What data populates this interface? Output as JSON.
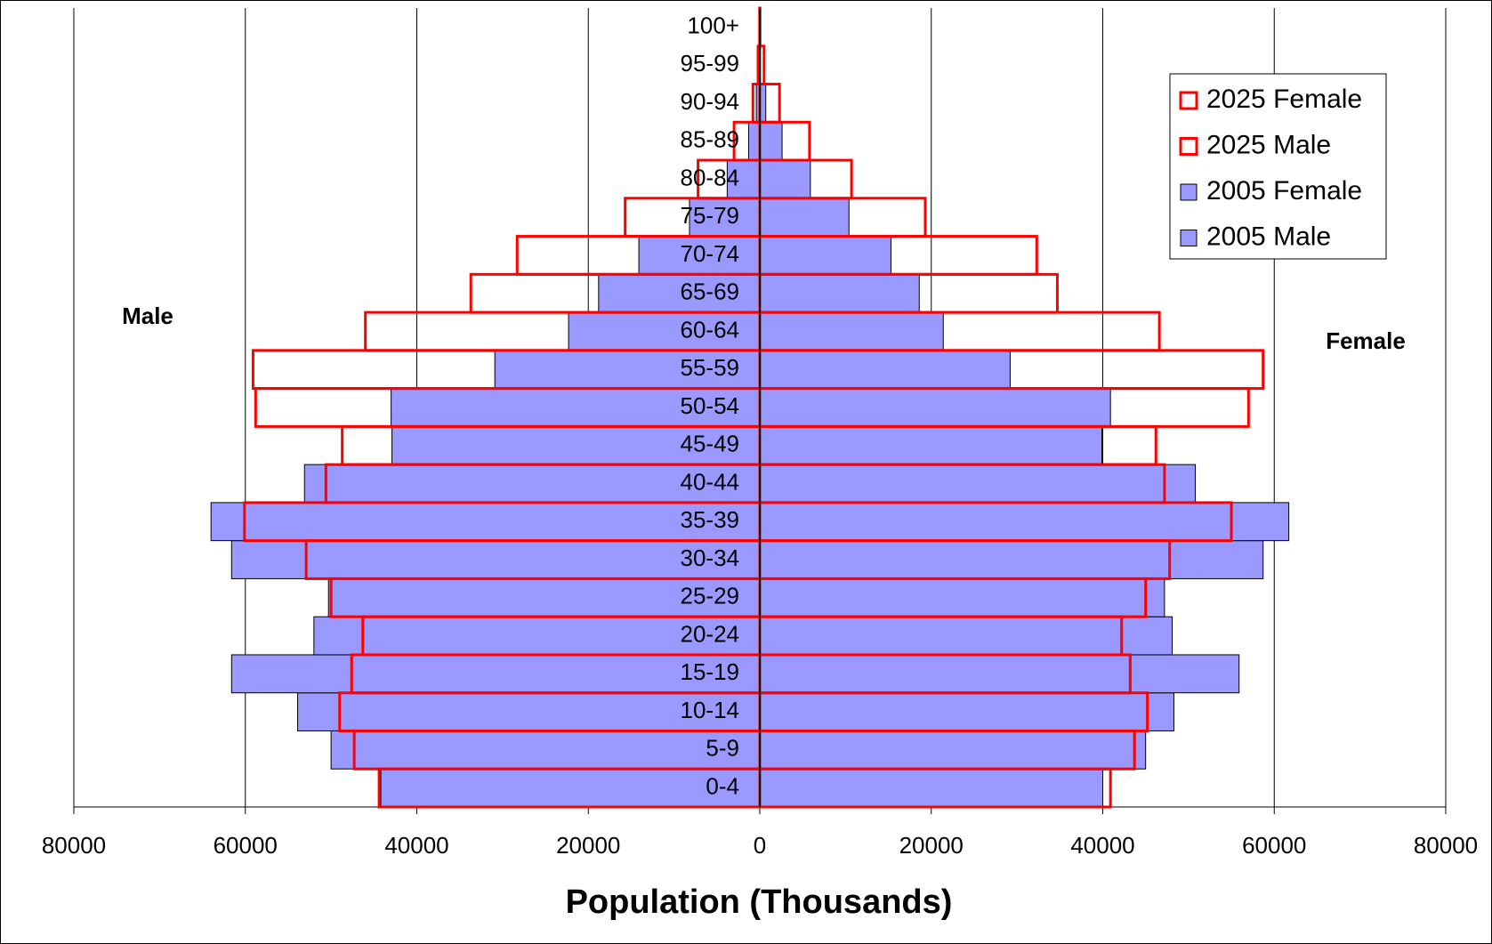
{
  "chart_data": {
    "type": "bar",
    "orientation": "horizontal",
    "x_label": "Population (Thousands)",
    "annotations": [
      "Male",
      "Female"
    ],
    "categories": [
      "0-4",
      "5-9",
      "10-14",
      "15-19",
      "20-24",
      "25-29",
      "30-34",
      "35-39",
      "40-44",
      "45-49",
      "50-54",
      "55-59",
      "60-64",
      "65-69",
      "70-74",
      "75-79",
      "80-84",
      "85-89",
      "90-94",
      "95-99",
      "100+"
    ],
    "series": [
      {
        "name": "2025 Female",
        "color": "#ff0000",
        "style": "outline",
        "values": [
          40900,
          43700,
          45200,
          43200,
          42200,
          45000,
          47800,
          55000,
          47200,
          46200,
          57000,
          58700,
          46600,
          34700,
          32300,
          19300,
          10700,
          5800,
          2300,
          500,
          30
        ]
      },
      {
        "name": "2025 Male",
        "color": "#ff0000",
        "style": "outline",
        "values": [
          -44400,
          -47300,
          -49000,
          -47600,
          -46300,
          -50000,
          -52900,
          -60100,
          -50600,
          -48700,
          -58800,
          -59100,
          -46000,
          -33700,
          -28300,
          -15700,
          -7200,
          -3000,
          -800,
          -200,
          -20
        ]
      },
      {
        "name": "2005 Female",
        "color": "#9999ff",
        "style": "filled",
        "values": [
          40000,
          45000,
          48300,
          55900,
          48100,
          47200,
          58700,
          61700,
          50800,
          39900,
          40900,
          29200,
          21400,
          18600,
          15300,
          10400,
          5900,
          2600,
          700,
          100,
          10
        ]
      },
      {
        "name": "2005 Male",
        "color": "#9999ff",
        "style": "filled",
        "values": [
          -44200,
          -50000,
          -53900,
          -61600,
          -52000,
          -50300,
          -61600,
          -64000,
          -53100,
          -42900,
          -43000,
          -30900,
          -22300,
          -18800,
          -14100,
          -8200,
          -3800,
          -1300,
          -400,
          -100,
          -10
        ]
      }
    ],
    "xlim": [
      -80000,
      80000
    ],
    "xticks": [
      {
        "value": -80000,
        "label": "80000"
      },
      {
        "value": -60000,
        "label": "60000"
      },
      {
        "value": -40000,
        "label": "40000"
      },
      {
        "value": -20000,
        "label": "20000"
      },
      0,
      20000,
      40000,
      60000,
      80000
    ],
    "grid": true,
    "legend": "upper right"
  }
}
